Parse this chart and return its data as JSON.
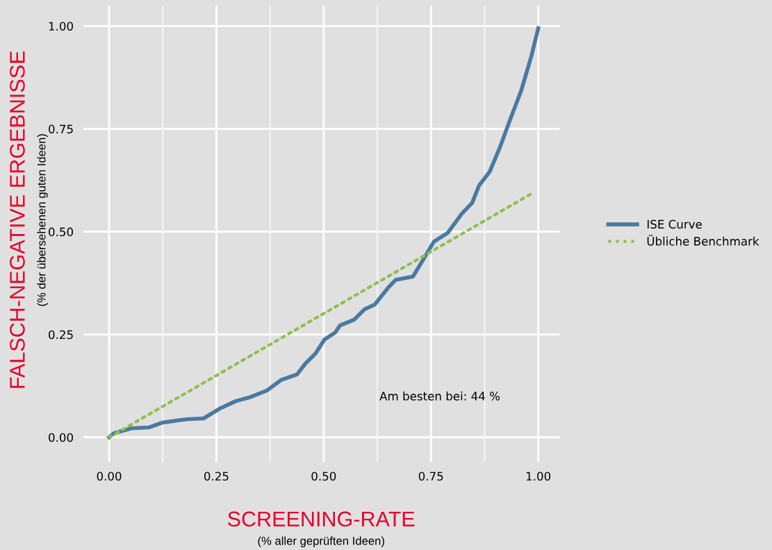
{
  "chart_data": {
    "type": "line",
    "xlabel": "SCREENING-RATE",
    "ylabel": "FALSCH-NEGATIVE ERGEBNISSE",
    "annotations": [
      "Am besten bei: 44 %",
      "(% aller geprüften Ideen)",
      "(% der übersehenen guten Ideen)"
    ],
    "xlim": [
      -0.06,
      1.05
    ],
    "ylim": [
      -0.06,
      1.05
    ],
    "xticks": [
      {
        "value": 0,
        "label": "0.00"
      },
      {
        "value": 0.25,
        "label": "0.25"
      },
      {
        "value": 0.5,
        "label": "0.50"
      },
      {
        "value": 0.75,
        "label": "0.75"
      },
      {
        "value": 1,
        "label": "1.00"
      }
    ],
    "yticks": [
      {
        "value": 0,
        "label": "0.00"
      },
      {
        "value": 0.25,
        "label": "0.25"
      },
      {
        "value": 0.5,
        "label": "0.50"
      },
      {
        "value": 0.75,
        "label": "0.75"
      },
      {
        "value": 1,
        "label": "1.00"
      }
    ],
    "grid": true,
    "legend": "right",
    "series": [
      {
        "name": "ISE Curve",
        "color": "#4a7aa0",
        "line_style": "solid",
        "x": [
          0,
          0.011,
          0.052,
          0.092,
          0.125,
          0.18,
          0.22,
          0.26,
          0.295,
          0.327,
          0.368,
          0.4,
          0.438,
          0.457,
          0.481,
          0.502,
          0.527,
          0.538,
          0.571,
          0.595,
          0.619,
          0.652,
          0.668,
          0.708,
          0.733,
          0.757,
          0.789,
          0.822,
          0.846,
          0.862,
          0.887,
          0.911,
          0.935,
          0.96,
          0.984,
          1.0
        ],
        "values": [
          0,
          0.01,
          0.022,
          0.024,
          0.036,
          0.044,
          0.046,
          0.071,
          0.088,
          0.097,
          0.114,
          0.139,
          0.153,
          0.179,
          0.204,
          0.238,
          0.255,
          0.272,
          0.286,
          0.311,
          0.323,
          0.366,
          0.383,
          0.391,
          0.434,
          0.476,
          0.497,
          0.544,
          0.57,
          0.612,
          0.646,
          0.706,
          0.774,
          0.842,
          0.927,
          0.995
        ]
      },
      {
        "name": "Übliche Benchmark",
        "color": "#8fbf4f",
        "line_style": "dotted",
        "x": [
          0,
          0.987
        ],
        "values": [
          0,
          0.594
        ]
      }
    ]
  }
}
